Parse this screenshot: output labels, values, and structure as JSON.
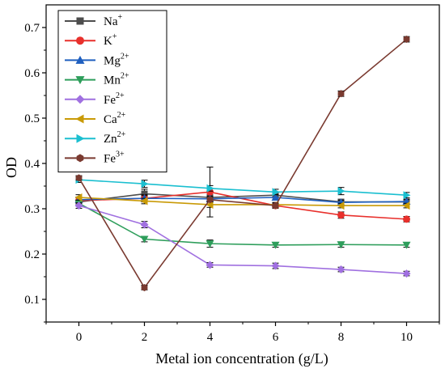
{
  "chart_data": {
    "type": "line",
    "xlabel": "Metal ion concentration (g/L)",
    "ylabel": "OD",
    "x": [
      0,
      2,
      4,
      6,
      8,
      10
    ],
    "xticks": [
      "0",
      "2",
      "4",
      "6",
      "8",
      "10"
    ],
    "yticks": [
      "0.1",
      "0.2",
      "0.3",
      "0.4",
      "0.5",
      "0.6",
      "0.7"
    ],
    "xlim": [
      -1,
      11
    ],
    "ylim": [
      0.05,
      0.75
    ],
    "grid": false,
    "legend_position": "top-left",
    "series": [
      {
        "name": "Na",
        "sup": "+",
        "color": "#4d4d4d",
        "marker": "square",
        "values": [
          0.315,
          0.333,
          0.325,
          0.33,
          0.315,
          0.315
        ],
        "errors": [
          0.006,
          0.01,
          0.01,
          0.006,
          0.006,
          0.006
        ]
      },
      {
        "name": "K",
        "sup": "+",
        "color": "#e8302c",
        "marker": "circle",
        "values": [
          0.318,
          0.323,
          0.337,
          0.307,
          0.286,
          0.277
        ],
        "errors": [
          0.006,
          0.008,
          0.055,
          0.006,
          0.007,
          0.006
        ]
      },
      {
        "name": "Mg",
        "sup": "2+",
        "color": "#1f5fbf",
        "marker": "triangle-up",
        "values": [
          0.32,
          0.323,
          0.322,
          0.325,
          0.314,
          0.316
        ],
        "errors": [
          0.006,
          0.006,
          0.006,
          0.006,
          0.005,
          0.005
        ]
      },
      {
        "name": "Mn",
        "sup": "2+",
        "color": "#2e9e5b",
        "marker": "triangle-down",
        "values": [
          0.312,
          0.233,
          0.223,
          0.22,
          0.221,
          0.22
        ],
        "errors": [
          0.006,
          0.006,
          0.008,
          0.005,
          0.006,
          0.005
        ]
      },
      {
        "name": "Fe",
        "sup": "2+",
        "color": "#a070e0",
        "marker": "diamond",
        "values": [
          0.307,
          0.265,
          0.176,
          0.174,
          0.166,
          0.157
        ],
        "errors": [
          0.006,
          0.007,
          0.005,
          0.006,
          0.005,
          0.005
        ]
      },
      {
        "name": "Ca",
        "sup": "2+",
        "color": "#c99a06",
        "marker": "triangle-left",
        "values": [
          0.325,
          0.317,
          0.309,
          0.309,
          0.307,
          0.307
        ],
        "errors": [
          0.006,
          0.006,
          0.006,
          0.005,
          0.005,
          0.005
        ]
      },
      {
        "name": "Zn",
        "sup": "2+",
        "color": "#1bbfd0",
        "marker": "triangle-right",
        "values": [
          0.364,
          0.355,
          0.345,
          0.337,
          0.339,
          0.33
        ],
        "errors": [
          0.006,
          0.008,
          0.006,
          0.006,
          0.008,
          0.006
        ]
      },
      {
        "name": "Fe",
        "sup": "3+",
        "color": "#7a3a30",
        "marker": "hexagon",
        "values": [
          0.368,
          0.126,
          0.32,
          0.307,
          0.554,
          0.674
        ],
        "errors": [
          0.005,
          0.005,
          0.005,
          0.005,
          0.006,
          0.006
        ]
      }
    ]
  }
}
